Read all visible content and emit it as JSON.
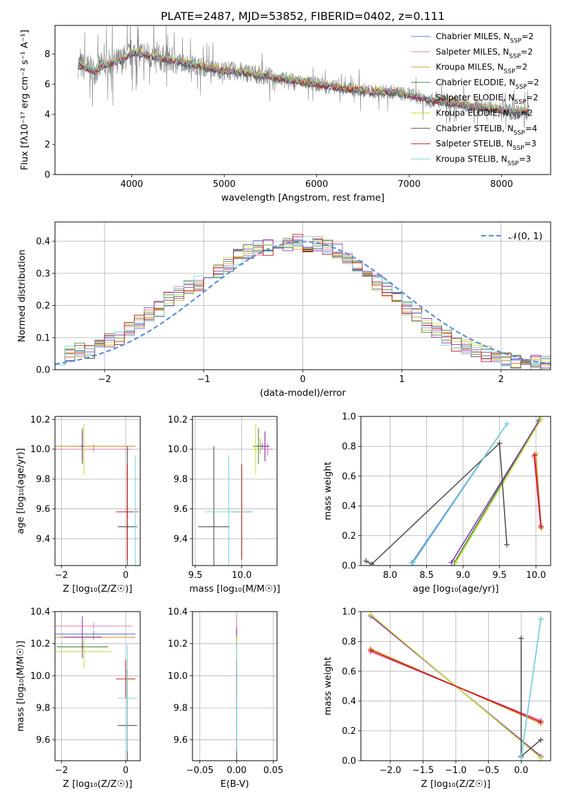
{
  "series_styles": [
    {
      "name": "Chabrier MILES",
      "nssp": "2",
      "color": "#5a7bd6"
    },
    {
      "name": "Salpeter MILES",
      "nssp": "2",
      "color": "#e878b8"
    },
    {
      "name": "Kroupa MILES",
      "nssp": "2",
      "color": "#e0a030"
    },
    {
      "name": "Chabrier ELODIE",
      "nssp": "2",
      "color": "#3a8a3a"
    },
    {
      "name": "Salpeter ELODIE",
      "nssp": "2",
      "color": "#8c2fa8"
    },
    {
      "name": "Kroupa ELODIE",
      "nssp": "2",
      "color": "#c8dc3a"
    },
    {
      "name": "Chabrier STELIB",
      "nssp": "4",
      "color": "#505050"
    },
    {
      "name": "Salpeter STELIB",
      "nssp": "3",
      "color": "#c01818"
    },
    {
      "name": "Kroupa STELIB",
      "nssp": "3",
      "color": "#78d4dc"
    }
  ],
  "data_color": "#808080",
  "chart_data": [
    {
      "id": "spectrum",
      "type": "line",
      "title": "PLATE=2487, MJD=53852, FIBERID=0402, z=0.111",
      "xlabel": "wavelength [Angstrom, rest frame]",
      "ylabel": "Flux [fλ10⁻¹⁷ erg cm⁻² s⁻¹ A⁻¹]",
      "xlim": [
        3170,
        8530
      ],
      "ylim": [
        0,
        9.9
      ],
      "xticks": [
        4000,
        5000,
        6000,
        7000,
        8000
      ],
      "yticks": [
        0,
        2,
        4,
        6,
        8
      ],
      "legend": "top-right",
      "legend_nssp_prefix": "N",
      "legend_nssp_sub": "SSP",
      "model_continuum": {
        "x": [
          3420,
          3500,
          3600,
          3700,
          3800,
          3900,
          4000,
          4200,
          4400,
          4600,
          4800,
          5000,
          5200,
          5400,
          5600,
          5800,
          6000,
          6200,
          6400,
          6600,
          6800,
          7000,
          7200,
          7400,
          7600,
          7800,
          8000,
          8200,
          8300
        ],
        "y": [
          7.3,
          7.1,
          6.9,
          7.3,
          7.4,
          7.6,
          8.1,
          7.9,
          7.6,
          7.4,
          7.1,
          6.9,
          6.8,
          6.6,
          6.4,
          6.2,
          6.0,
          5.8,
          5.65,
          5.5,
          5.5,
          5.3,
          5.0,
          4.8,
          4.6,
          4.45,
          4.3,
          4.2,
          4.2
        ]
      }
    },
    {
      "id": "residuals",
      "type": "line",
      "xlabel": "(data-model)/error",
      "ylabel": "Normed distribution",
      "xlim": [
        -2.5,
        2.5
      ],
      "ylim": [
        0,
        0.46
      ],
      "xticks": [
        -2,
        -1,
        0,
        1,
        2
      ],
      "yticks": [
        0.0,
        0.1,
        0.2,
        0.3,
        0.4
      ],
      "legend": "top-right",
      "reference_label": "𝒩(0, 1)",
      "reference_color": "#5b8fd6",
      "bin_width": 0.1,
      "hist_example": [
        0.04,
        0.05,
        0.06,
        0.06,
        0.07,
        0.09,
        0.1,
        0.13,
        0.15,
        0.17,
        0.19,
        0.22,
        0.24,
        0.26,
        0.27,
        0.29,
        0.31,
        0.33,
        0.35,
        0.37,
        0.38,
        0.38,
        0.39,
        0.39,
        0.4,
        0.39,
        0.39,
        0.38,
        0.37,
        0.35,
        0.33,
        0.3,
        0.27,
        0.25,
        0.22,
        0.19,
        0.17,
        0.14,
        0.12,
        0.1,
        0.08,
        0.07,
        0.06,
        0.05,
        0.04,
        0.03,
        0.03,
        0.02,
        0.02,
        0.02
      ]
    },
    {
      "id": "age-vs-Z",
      "type": "scatter",
      "xlabel": "Z [log₁₀(Z/Z☉)]",
      "ylabel": "age  [log₁₀(age/yr)]",
      "xlim": [
        -2.2,
        0.45
      ],
      "ylim": [
        9.22,
        10.22
      ],
      "xticks": [
        -2,
        0
      ],
      "yticks": [
        9.4,
        9.6,
        9.8,
        10.0,
        10.2
      ],
      "errorbars": [
        {
          "s": 0,
          "x": -1.0,
          "xerr": 1.3,
          "y": 10.02,
          "yerr": 0.01
        },
        {
          "s": 1,
          "x": -1.0,
          "xerr": 1.2,
          "y": 10.0,
          "yerr": 0.02
        },
        {
          "s": 2,
          "x": -1.0,
          "xerr": 1.3,
          "y": 10.02,
          "yerr": 0.01
        },
        {
          "s": 3,
          "x": -1.35,
          "xerr": 0.05,
          "y": 10.02,
          "yerr": 0.12
        },
        {
          "s": 4,
          "x": -1.35,
          "xerr": 0.05,
          "y": 10.02,
          "yerr": 0.1
        },
        {
          "s": 5,
          "x": -1.3,
          "xerr": 0.05,
          "y": 10.0,
          "yerr": 0.17
        },
        {
          "s": 6,
          "x": 0.05,
          "xerr": 0.3,
          "y": 9.48,
          "yerr": 0.54
        },
        {
          "s": 7,
          "x": 0.05,
          "xerr": 0.35,
          "y": 9.58,
          "yerr": 0.32
        },
        {
          "s": 8,
          "x": 0.3,
          "xerr": 0.05,
          "y": 9.58,
          "yerr": 0.38
        }
      ]
    },
    {
      "id": "age-vs-mass",
      "type": "scatter",
      "xlabel": "mass [log₁₀(M/M☉)]",
      "ylabel": "",
      "xlim": [
        9.47,
        10.38
      ],
      "ylim": [
        9.22,
        10.22
      ],
      "xticks": [
        9.5,
        10.0
      ],
      "yticks": [
        9.4,
        9.6,
        9.8,
        10.0,
        10.2
      ],
      "errorbars": [
        {
          "s": 0,
          "x": 10.22,
          "xerr": 0.08,
          "y": 10.02,
          "yerr": 0.02
        },
        {
          "s": 1,
          "x": 10.28,
          "xerr": 0.05,
          "y": 10.0,
          "yerr": 0.04
        },
        {
          "s": 2,
          "x": 10.2,
          "xerr": 0.08,
          "y": 10.02,
          "yerr": 0.05
        },
        {
          "s": 3,
          "x": 10.18,
          "xerr": 0.05,
          "y": 10.02,
          "yerr": 0.12
        },
        {
          "s": 4,
          "x": 10.25,
          "xerr": 0.04,
          "y": 10.02,
          "yerr": 0.1
        },
        {
          "s": 5,
          "x": 10.15,
          "xerr": 0.03,
          "y": 10.0,
          "yerr": 0.17
        },
        {
          "s": 6,
          "x": 9.7,
          "xerr": 0.17,
          "y": 9.48,
          "yerr": 0.54
        },
        {
          "s": 7,
          "x": 10.0,
          "xerr": 0.1,
          "y": 9.58,
          "yerr": 0.32
        },
        {
          "s": 8,
          "x": 9.86,
          "xerr": 0.26,
          "y": 9.58,
          "yerr": 0.38
        }
      ]
    },
    {
      "id": "weight-vs-age",
      "type": "line",
      "xlabel": "age  [log₁₀(age/yr)]",
      "ylabel": "mass weight",
      "xlim": [
        7.6,
        10.2
      ],
      "ylim": [
        0,
        1.0
      ],
      "xticks": [
        8.0,
        8.5,
        9.0,
        9.5,
        10.0
      ],
      "yticks": [
        0.0,
        0.2,
        0.4,
        0.6,
        0.8,
        1.0
      ],
      "series": [
        {
          "s": 0,
          "x": [
            8.3,
            9.6
          ],
          "y": [
            0.02,
            0.95
          ]
        },
        {
          "s": 1,
          "x": [
            9.97,
            10.06
          ],
          "y": [
            0.73,
            0.27
          ]
        },
        {
          "s": 2,
          "x": [
            10.0,
            10.07
          ],
          "y": [
            0.75,
            0.25
          ]
        },
        {
          "s": 3,
          "x": [
            8.88,
            10.05
          ],
          "y": [
            0.02,
            0.98
          ]
        },
        {
          "s": 4,
          "x": [
            8.84,
            10.04
          ],
          "y": [
            0.02,
            0.97
          ]
        },
        {
          "s": 5,
          "x": [
            8.9,
            10.07
          ],
          "y": [
            0.02,
            0.98
          ]
        },
        {
          "s": 6,
          "x": [
            7.67,
            7.75,
            9.5,
            9.6
          ],
          "y": [
            0.03,
            0.01,
            0.82,
            0.14
          ]
        },
        {
          "s": 7,
          "x": [
            9.98,
            10.07
          ],
          "y": [
            0.74,
            0.26
          ]
        },
        {
          "s": 8,
          "x": [
            8.32,
            9.6
          ],
          "y": [
            0.02,
            0.95
          ]
        }
      ]
    },
    {
      "id": "mass-vs-Z",
      "type": "scatter",
      "xlabel": "Z [log₁₀(Z/Z☉)]",
      "ylabel": "mass [log₁₀(M/M☉)]",
      "xlim": [
        -2.2,
        0.45
      ],
      "ylim": [
        9.47,
        10.4
      ],
      "xticks": [
        -2,
        0
      ],
      "yticks": [
        9.6,
        9.8,
        10.0,
        10.2,
        10.4
      ],
      "errorbars": [
        {
          "s": 0,
          "x": -1.0,
          "xerr": 1.3,
          "y": 10.26,
          "yerr": 0.02
        },
        {
          "s": 1,
          "x": -1.0,
          "xerr": 1.2,
          "y": 10.31,
          "yerr": 0.02
        },
        {
          "s": 2,
          "x": -1.0,
          "xerr": 1.3,
          "y": 10.24,
          "yerr": 0.02
        },
        {
          "s": 3,
          "x": -1.35,
          "xerr": 0.8,
          "y": 10.18,
          "yerr": 0.02
        },
        {
          "s": 4,
          "x": -1.35,
          "xerr": 0.6,
          "y": 10.24,
          "yerr": 0.13
        },
        {
          "s": 5,
          "x": -1.3,
          "xerr": 0.85,
          "y": 10.15,
          "yerr": 0.1
        },
        {
          "s": 6,
          "x": 0.05,
          "xerr": 0.3,
          "y": 9.69,
          "yerr": 0.35
        },
        {
          "s": 7,
          "x": 0.0,
          "xerr": 0.3,
          "y": 9.98,
          "yerr": 0.12
        },
        {
          "s": 8,
          "x": 0.05,
          "xerr": 0.3,
          "y": 9.86,
          "yerr": 0.33
        }
      ]
    },
    {
      "id": "mass-vs-EBV",
      "type": "scatter",
      "xlabel": "E(B-V)",
      "ylabel": "",
      "xlim": [
        -0.06,
        0.055
      ],
      "ylim": [
        9.47,
        10.4
      ],
      "xticks": [
        -0.05,
        0.0,
        0.05
      ],
      "xtick_labels": [
        "−0.05",
        "0.00",
        "0.05"
      ],
      "yticks": [
        9.6,
        9.8,
        10.0,
        10.2,
        10.4
      ],
      "errorbars": [
        {
          "s": 0,
          "x": 0.0,
          "xerr": 0.0005,
          "y": 10.26,
          "yerr": 0.02
        },
        {
          "s": 1,
          "x": 0.0,
          "xerr": 0.0005,
          "y": 10.31,
          "yerr": 0.07
        },
        {
          "s": 2,
          "x": 0.0,
          "xerr": 0.0005,
          "y": 10.24,
          "yerr": 0.02
        },
        {
          "s": 3,
          "x": 0.0,
          "xerr": 0.0005,
          "y": 10.18,
          "yerr": 0.02
        },
        {
          "s": 4,
          "x": 0.0,
          "xerr": 0.0005,
          "y": 10.24,
          "yerr": 0.06
        },
        {
          "s": 5,
          "x": 0.0,
          "xerr": 0.0005,
          "y": 10.15,
          "yerr": 0.1
        },
        {
          "s": 6,
          "x": 0.0,
          "xerr": 0.0005,
          "y": 9.69,
          "yerr": 0.35
        },
        {
          "s": 7,
          "x": 0.0,
          "xerr": 0.0005,
          "y": 9.98,
          "yerr": 0.12
        },
        {
          "s": 8,
          "x": 0.0,
          "xerr": 0.0005,
          "y": 9.86,
          "yerr": 0.33
        }
      ]
    },
    {
      "id": "weight-vs-Z",
      "type": "line",
      "xlabel": "Z [log₁₀(Z/Z☉)]",
      "ylabel": "mass weight",
      "xlim": [
        -2.45,
        0.45
      ],
      "ylim": [
        0,
        1.0
      ],
      "xticks": [
        -2.0,
        -1.5,
        -1.0,
        -0.5,
        0.0
      ],
      "yticks": [
        0.0,
        0.2,
        0.4,
        0.6,
        0.8,
        1.0
      ],
      "series": [
        {
          "s": 0,
          "x": [
            0.0,
            0.3
          ],
          "y": [
            0.02,
            0.95
          ]
        },
        {
          "s": 1,
          "x": [
            -2.3,
            0.3
          ],
          "y": [
            0.73,
            0.27
          ]
        },
        {
          "s": 2,
          "x": [
            -2.3,
            0.3
          ],
          "y": [
            0.75,
            0.25
          ]
        },
        {
          "s": 3,
          "x": [
            -2.3,
            0.3
          ],
          "y": [
            0.98,
            0.02
          ]
        },
        {
          "s": 4,
          "x": [
            -2.3,
            0.3
          ],
          "y": [
            0.97,
            0.03
          ]
        },
        {
          "s": 5,
          "x": [
            -2.3,
            0.3
          ],
          "y": [
            0.98,
            0.02
          ]
        },
        {
          "s": 6,
          "x": [
            0.0,
            0.0,
            0.3
          ],
          "y": [
            0.82,
            0.03,
            0.14
          ]
        },
        {
          "s": 7,
          "x": [
            -2.3,
            0.3
          ],
          "y": [
            0.74,
            0.26
          ]
        },
        {
          "s": 8,
          "x": [
            0.0,
            0.3
          ],
          "y": [
            0.02,
            0.95
          ]
        }
      ]
    }
  ]
}
